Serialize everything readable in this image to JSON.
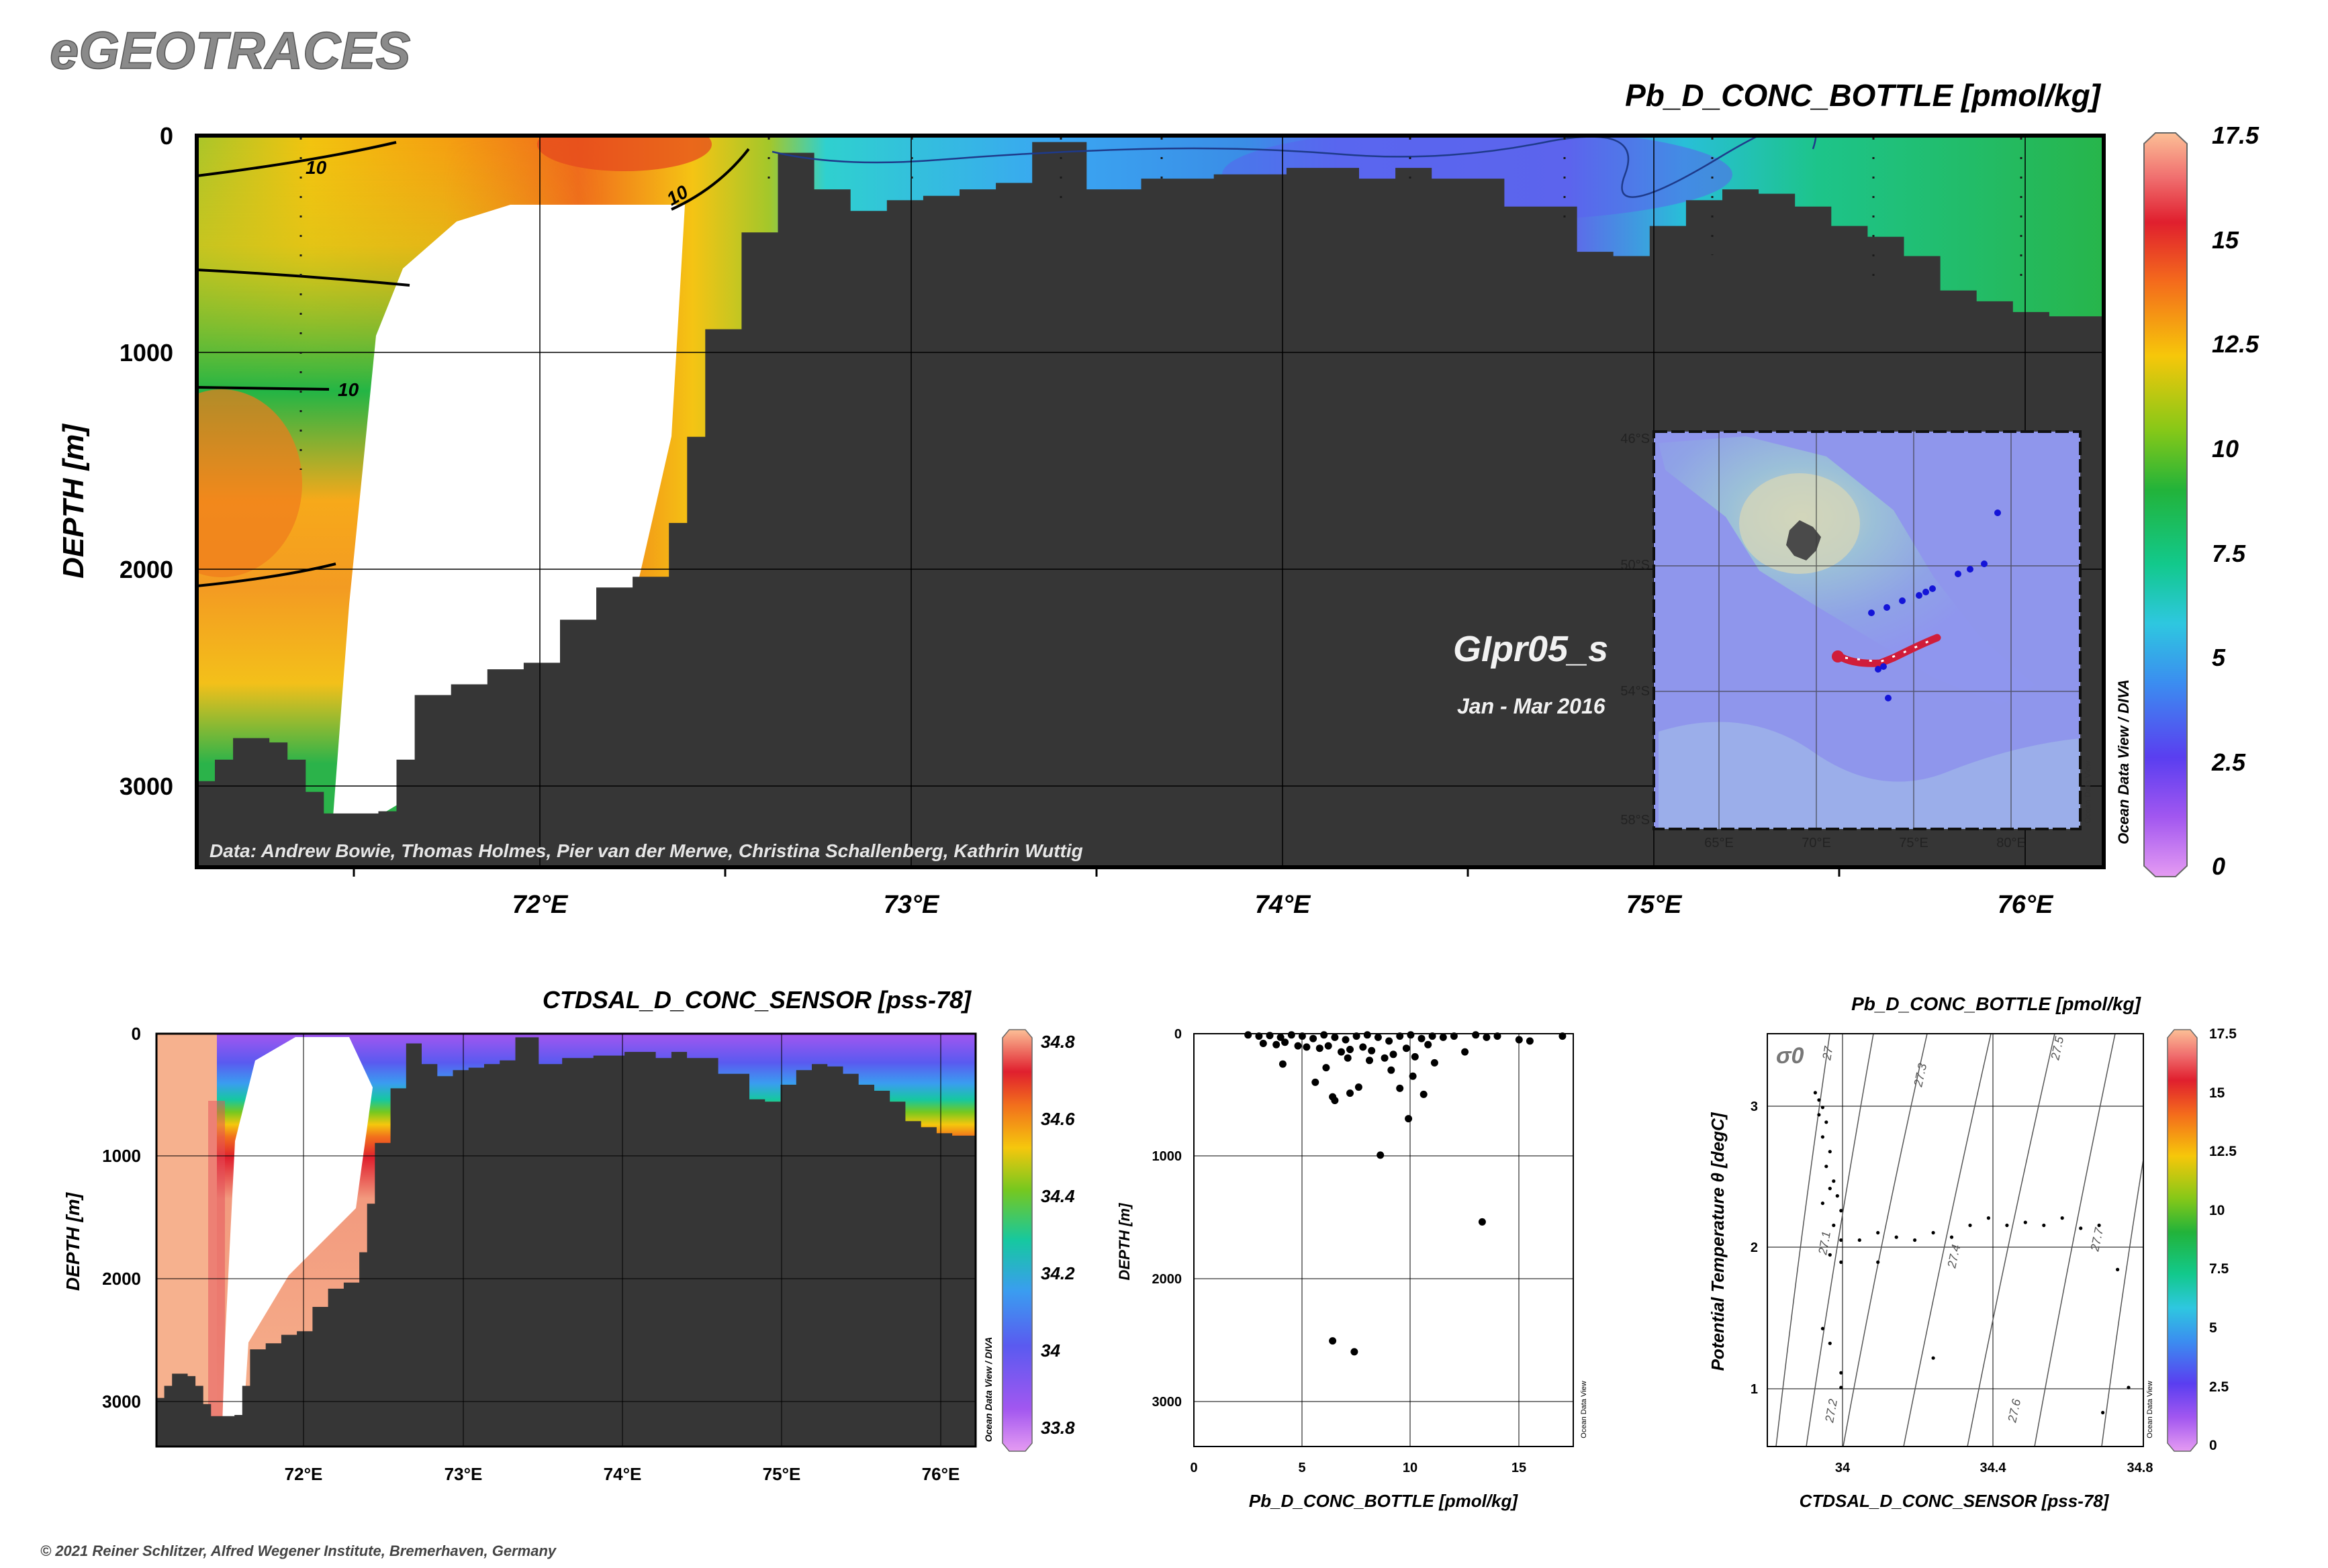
{
  "brand": "eGEOTRACES",
  "copyright": "© 2021 Reiner Schlitzer, Alfred Wegener Institute, Bremerhaven, Germany",
  "section_label": {
    "name": "GIpr05_s",
    "period": "Jan - Mar 2016"
  },
  "credits": "Data: Andrew Bowie, Thomas Holmes, Pier van der Merwe, Christina Schallenberg, Kathrin Wuttig",
  "watermark": {
    "odv_diva": "Ocean Data View / DIVA",
    "odv": "Ocean Data View"
  },
  "colors": {
    "seafloor": "#363636",
    "frame": "#000000",
    "background": "#ffffff",
    "brand_text": "#8a8a8a"
  },
  "chart_data": [
    {
      "id": "main",
      "type": "heatmap",
      "title": "Pb_D_CONC_BOTTLE [pmol/kg]",
      "ylabel": "DEPTH [m]",
      "xlim": [
        71.0,
        76.25
      ],
      "ylim": [
        3400,
        0
      ],
      "xticks": [
        "72°E",
        "73°E",
        "74°E",
        "75°E",
        "76°E"
      ],
      "yticks": [
        "0",
        "1000",
        "2000",
        "3000"
      ],
      "contours": [
        "10",
        "10",
        "10"
      ],
      "colorbar": {
        "min": 0,
        "max": 17.5,
        "ticks": [
          "0",
          "2.5",
          "5",
          "7.5",
          "10",
          "12.5",
          "15",
          "17.5"
        ]
      },
      "samples": [
        {
          "lon": 71.05,
          "depth": 50,
          "value": 9
        },
        {
          "lon": 71.05,
          "depth": 1500,
          "value": 12.5
        },
        {
          "lon": 71.4,
          "depth": 30,
          "value": 14
        },
        {
          "lon": 72.1,
          "depth": 50,
          "value": 16
        },
        {
          "lon": 72.6,
          "depth": 50,
          "value": 6
        },
        {
          "lon": 73.6,
          "depth": 50,
          "value": 3
        },
        {
          "lon": 75.5,
          "depth": 100,
          "value": 6
        }
      ],
      "seafloor": [
        [
          71.0,
          3000
        ],
        [
          71.05,
          2900
        ],
        [
          71.1,
          2800
        ],
        [
          71.2,
          2820
        ],
        [
          71.25,
          2900
        ],
        [
          71.3,
          3050
        ],
        [
          71.35,
          3150
        ],
        [
          71.5,
          3140
        ],
        [
          71.55,
          2900
        ],
        [
          71.6,
          2600
        ],
        [
          71.7,
          2550
        ],
        [
          71.8,
          2480
        ],
        [
          71.9,
          2450
        ],
        [
          72.0,
          2250
        ],
        [
          72.1,
          2100
        ],
        [
          72.2,
          2050
        ],
        [
          72.3,
          1800
        ],
        [
          72.35,
          1400
        ],
        [
          72.4,
          900
        ],
        [
          72.5,
          450
        ],
        [
          72.6,
          80
        ],
        [
          72.7,
          250
        ],
        [
          72.8,
          350
        ],
        [
          72.9,
          300
        ],
        [
          73.0,
          280
        ],
        [
          73.1,
          250
        ],
        [
          73.2,
          220
        ],
        [
          73.3,
          30
        ],
        [
          73.45,
          250
        ],
        [
          73.6,
          200
        ],
        [
          73.8,
          180
        ],
        [
          74.0,
          150
        ],
        [
          74.2,
          200
        ],
        [
          74.3,
          150
        ],
        [
          74.4,
          200
        ],
        [
          74.6,
          330
        ],
        [
          74.8,
          540
        ],
        [
          74.9,
          560
        ],
        [
          75.0,
          420
        ],
        [
          75.1,
          300
        ],
        [
          75.2,
          250
        ],
        [
          75.3,
          270
        ],
        [
          75.4,
          330
        ],
        [
          75.5,
          420
        ],
        [
          75.6,
          470
        ],
        [
          75.7,
          560
        ],
        [
          75.8,
          720
        ],
        [
          75.9,
          770
        ],
        [
          76.0,
          820
        ],
        [
          76.1,
          840
        ],
        [
          76.25,
          830
        ]
      ]
    },
    {
      "id": "salinity",
      "type": "heatmap",
      "title": "CTDSAL_D_CONC_SENSOR [pss-78]",
      "ylabel": "DEPTH [m]",
      "xlim": [
        71.0,
        76.25
      ],
      "ylim": [
        3400,
        0
      ],
      "xticks": [
        "72°E",
        "73°E",
        "74°E",
        "75°E",
        "76°E"
      ],
      "yticks": [
        "0",
        "1000",
        "2000",
        "3000"
      ],
      "colorbar": {
        "min": 33.75,
        "max": 34.85,
        "ticks": [
          "33.8",
          "34",
          "34.2",
          "34.4",
          "34.6",
          "34.8"
        ]
      }
    },
    {
      "id": "profile",
      "type": "scatter",
      "xlabel": "Pb_D_CONC_BOTTLE [pmol/kg]",
      "ylabel": "DEPTH [m]",
      "xlim": [
        0,
        17.5
      ],
      "ylim": [
        3400,
        0
      ],
      "xticks": [
        "0",
        "5",
        "10",
        "15"
      ],
      "yticks": [
        "0",
        "1000",
        "2000",
        "3000"
      ],
      "x": [
        2.5,
        3,
        3.5,
        4,
        4.5,
        5,
        5.5,
        6,
        6.5,
        7,
        7.5,
        8,
        8.5,
        9,
        9.5,
        10,
        10.5,
        11,
        11.5,
        12,
        13,
        13.5,
        14,
        15,
        15.5,
        17,
        3.2,
        3.8,
        4.2,
        4.8,
        5.2,
        5.8,
        6.2,
        6.8,
        7.2,
        7.8,
        8.2,
        8.8,
        9.2,
        9.8,
        10.2,
        10.8,
        12.5,
        4.1,
        6.1,
        7.1,
        8.1,
        9.1,
        10.1,
        11.1,
        5.6,
        7.6,
        6.4,
        9.5,
        10.6,
        6.5,
        7.2,
        8.6,
        9.9,
        13.3,
        6.4,
        7.4
      ],
      "y": [
        10,
        20,
        15,
        30,
        10,
        20,
        40,
        10,
        30,
        50,
        20,
        10,
        30,
        60,
        20,
        10,
        40,
        20,
        30,
        20,
        10,
        30,
        20,
        50,
        60,
        20,
        80,
        90,
        70,
        100,
        110,
        120,
        100,
        150,
        130,
        110,
        140,
        200,
        170,
        120,
        190,
        90,
        150,
        250,
        280,
        200,
        220,
        300,
        350,
        240,
        400,
        440,
        520,
        450,
        500,
        550,
        490,
        1000,
        700,
        1550,
        2530,
        2620
      ]
    },
    {
      "id": "ts",
      "type": "scatter",
      "title": "Pb_D_CONC_BOTTLE [pmol/kg]",
      "xlabel": "CTDSAL_D_CONC_SENSOR [pss-78]",
      "ylabel": "Potential Temperature θ [degC]",
      "xlim": [
        33.8,
        34.82
      ],
      "ylim": [
        0.7,
        3.5
      ],
      "xticks": [
        "34",
        "34.4",
        "34.8"
      ],
      "yticks": [
        "1",
        "2",
        "3"
      ],
      "isopycnal_symbol": "σ0",
      "isopycnals": [
        "27",
        "27.1",
        "27.2",
        "27.3",
        "27.4",
        "27.5",
        "27.6",
        "27.7"
      ],
      "colorbar": {
        "min": 0,
        "max": 17.5,
        "ticks": [
          "0",
          "2.5",
          "5",
          "7.5",
          "10",
          "12.5",
          "15",
          "17.5"
        ]
      },
      "x": [
        33.93,
        33.94,
        33.95,
        33.94,
        33.96,
        33.95,
        33.97,
        33.96,
        33.98,
        33.97,
        33.99,
        34.0,
        33.98,
        34.0,
        33.97,
        33.95,
        34.0,
        34.05,
        34.1,
        34.15,
        34.2,
        34.25,
        34.3,
        34.35,
        34.4,
        34.45,
        34.5,
        34.55,
        34.6,
        34.65,
        34.7,
        33.95,
        33.97,
        34.0,
        34.0,
        34.1,
        34.25,
        34.75,
        34.78,
        34.71
      ],
      "y": [
        3.1,
        3.05,
        3.0,
        2.95,
        2.9,
        2.8,
        2.7,
        2.6,
        2.5,
        2.45,
        2.4,
        2.3,
        2.2,
        2.1,
        2.0,
        2.35,
        1.95,
        2.1,
        2.15,
        2.12,
        2.1,
        2.15,
        2.12,
        2.2,
        2.25,
        2.2,
        2.22,
        2.2,
        2.25,
        2.18,
        2.2,
        1.5,
        1.4,
        1.2,
        1.1,
        1.95,
        1.3,
        1.9,
        1.1,
        0.93
      ]
    }
  ],
  "inset_map": {
    "lat_labels": [
      "46°S",
      "50°S",
      "54°S",
      "58°S"
    ],
    "lon_labels": [
      "65°E",
      "70°E",
      "75°E",
      "80°E"
    ],
    "stations": [
      [
        75.6,
        -53.5
      ],
      [
        74.9,
        -53.2
      ],
      [
        75.0,
        -52.2
      ],
      [
        76.5,
        -51.8
      ],
      [
        77.5,
        -51.4
      ],
      [
        78.3,
        -51.1
      ],
      [
        79.5,
        -50.5
      ],
      [
        80.2,
        -48.5
      ],
      [
        74.5,
        -51.4
      ],
      [
        73.5,
        -52.0
      ]
    ]
  }
}
